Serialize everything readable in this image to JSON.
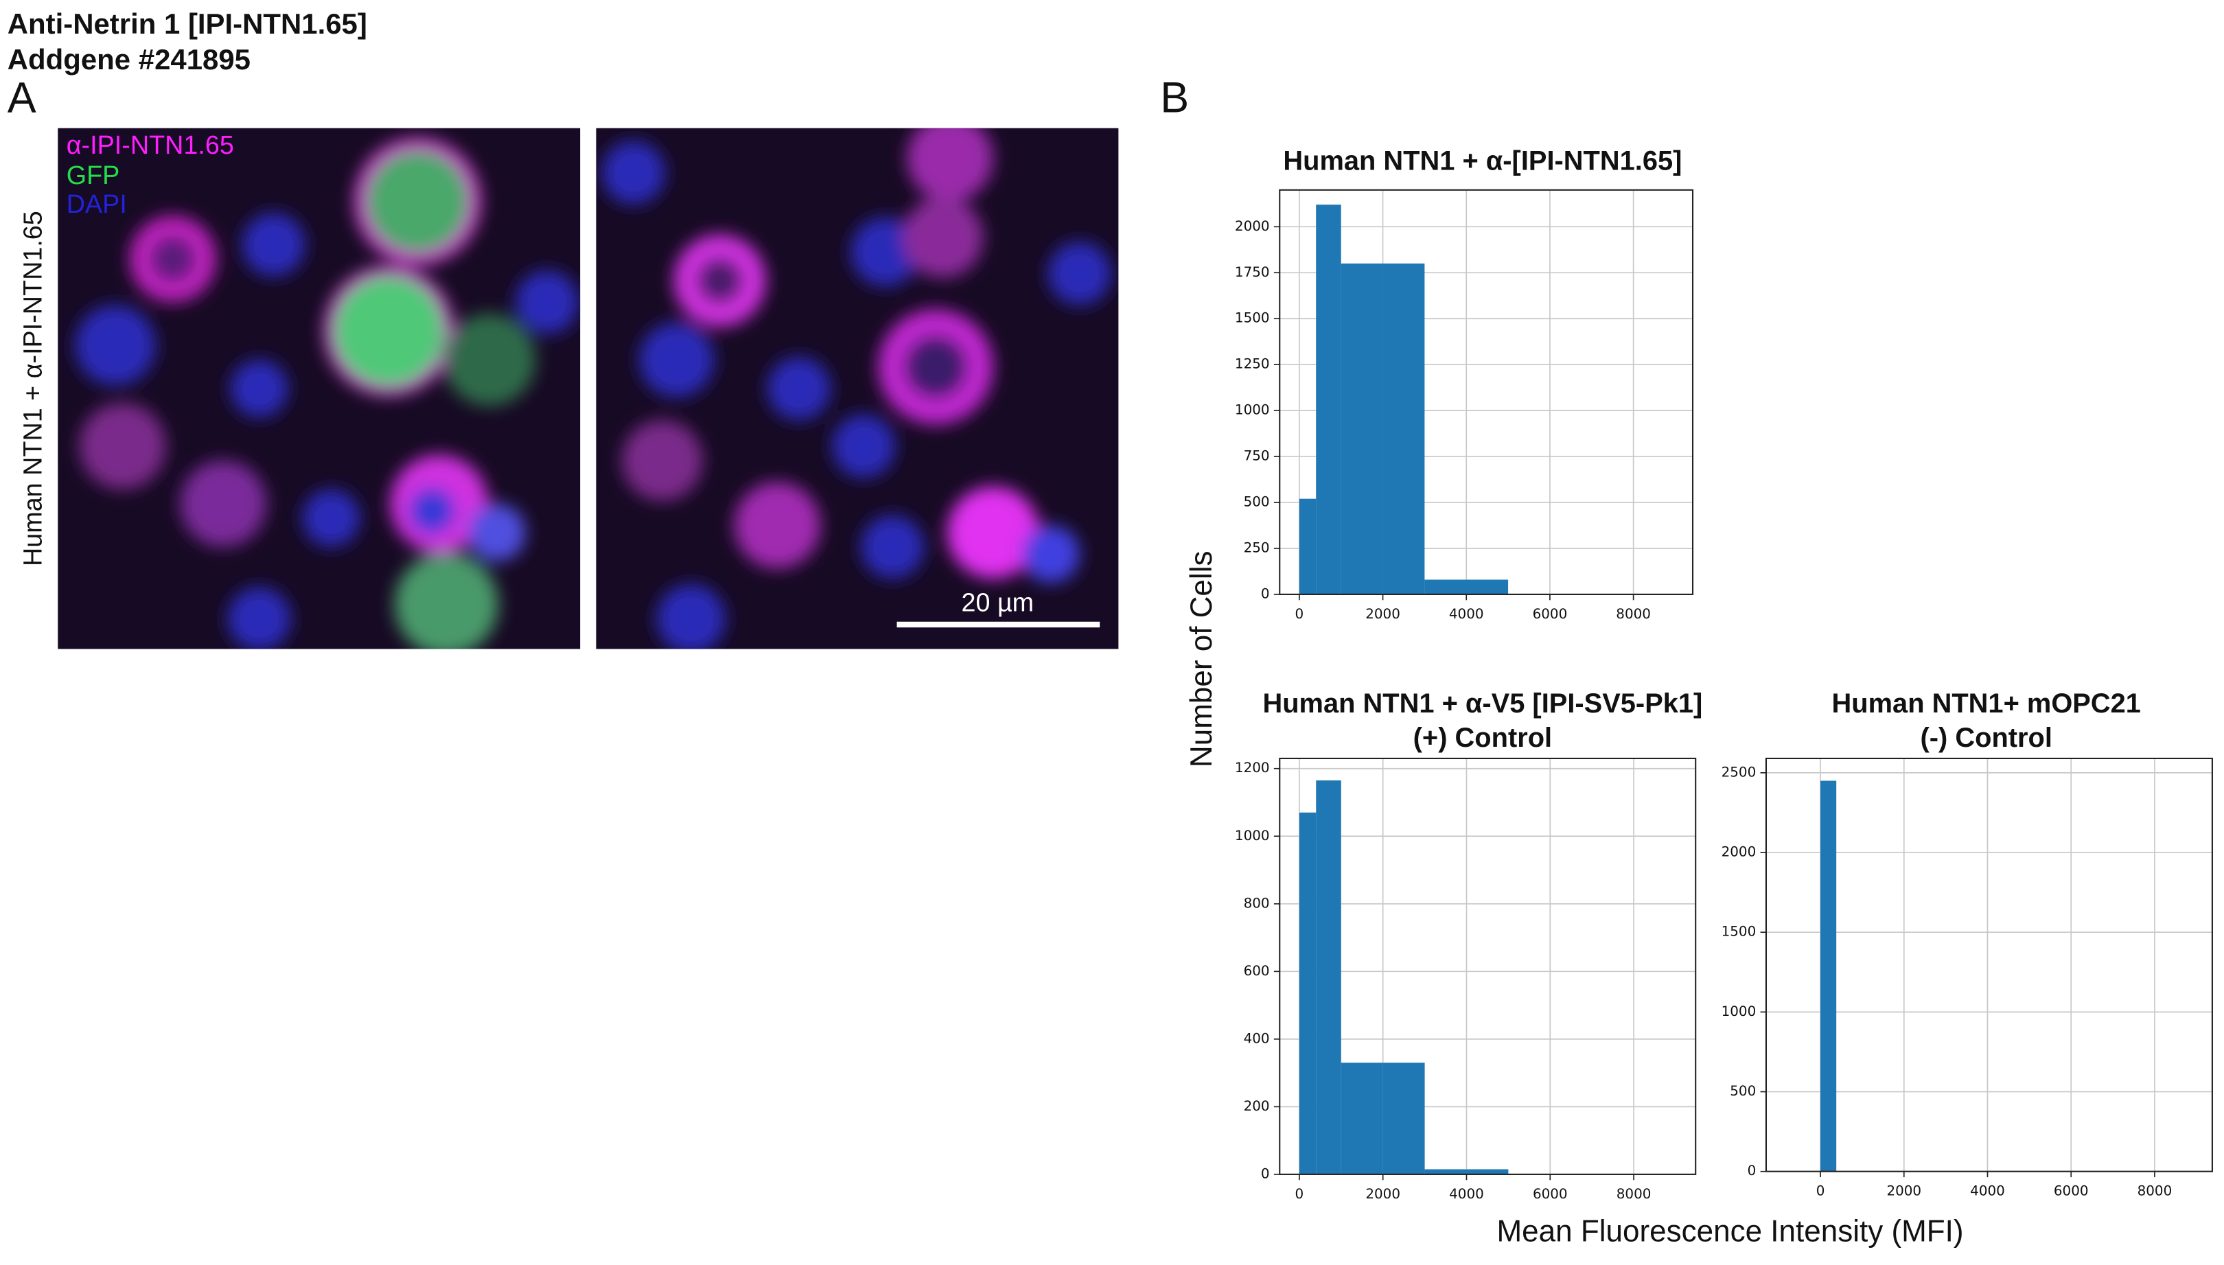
{
  "header": {
    "title": "Anti-Netrin 1 [IPI-NTN1.65]",
    "subtitle": "Addgene #241895"
  },
  "panel_a": {
    "label": "A",
    "row_label": "Human NTN1 + α-IPI-NTN1.65",
    "channels": [
      {
        "name": "α-IPI-NTN1.65",
        "color": "#ff1eff"
      },
      {
        "name": "GFP",
        "color": "#22e04a"
      },
      {
        "name": "DAPI",
        "color": "#2222dd"
      }
    ],
    "scale_bar": "20 µm"
  },
  "panel_b": {
    "label": "B",
    "y_label": "Number of Cells",
    "x_label": "Mean Fluorescence Intensity (MFI)"
  },
  "chart_data": [
    {
      "type": "histogram",
      "title": [
        "Human NTN1 + α-[IPI-NTN1.65]"
      ],
      "bins": [
        0,
        400,
        1000,
        2000,
        3000,
        5000
      ],
      "values": [
        520,
        2120,
        1800,
        1800,
        80
      ],
      "color": "#1f77b4",
      "xlim": [
        -470,
        9420
      ],
      "ylim": [
        0,
        2200
      ],
      "xticks": [
        0,
        2000,
        4000,
        6000,
        8000
      ],
      "yticks": [
        0,
        250,
        500,
        750,
        1000,
        1250,
        1500,
        1750,
        2000
      ],
      "grid": true
    },
    {
      "type": "histogram",
      "title": [
        "Human NTN1 + α-V5 [IPI-SV5-Pk1]",
        "(+) Control"
      ],
      "bins": [
        0,
        400,
        1000,
        2000,
        3000,
        5000
      ],
      "values": [
        1070,
        1165,
        330,
        330,
        15
      ],
      "color": "#1f77b4",
      "xlim": [
        -470,
        9480
      ],
      "ylim": [
        0,
        1230
      ],
      "xticks": [
        0,
        2000,
        4000,
        6000,
        8000
      ],
      "yticks": [
        0,
        200,
        400,
        600,
        800,
        1000,
        1200
      ],
      "grid": true
    },
    {
      "type": "histogram",
      "title": [
        "Human NTN1+ mOPC21",
        "(-) Control"
      ],
      "bins": [
        0,
        380
      ],
      "values": [
        2450
      ],
      "color": "#1f77b4",
      "xlim": [
        -1300,
        9380
      ],
      "ylim": [
        0,
        2590
      ],
      "xticks": [
        0,
        2000,
        4000,
        6000,
        8000
      ],
      "yticks": [
        0,
        500,
        1000,
        1500,
        2000,
        2500
      ],
      "grid": true
    }
  ]
}
